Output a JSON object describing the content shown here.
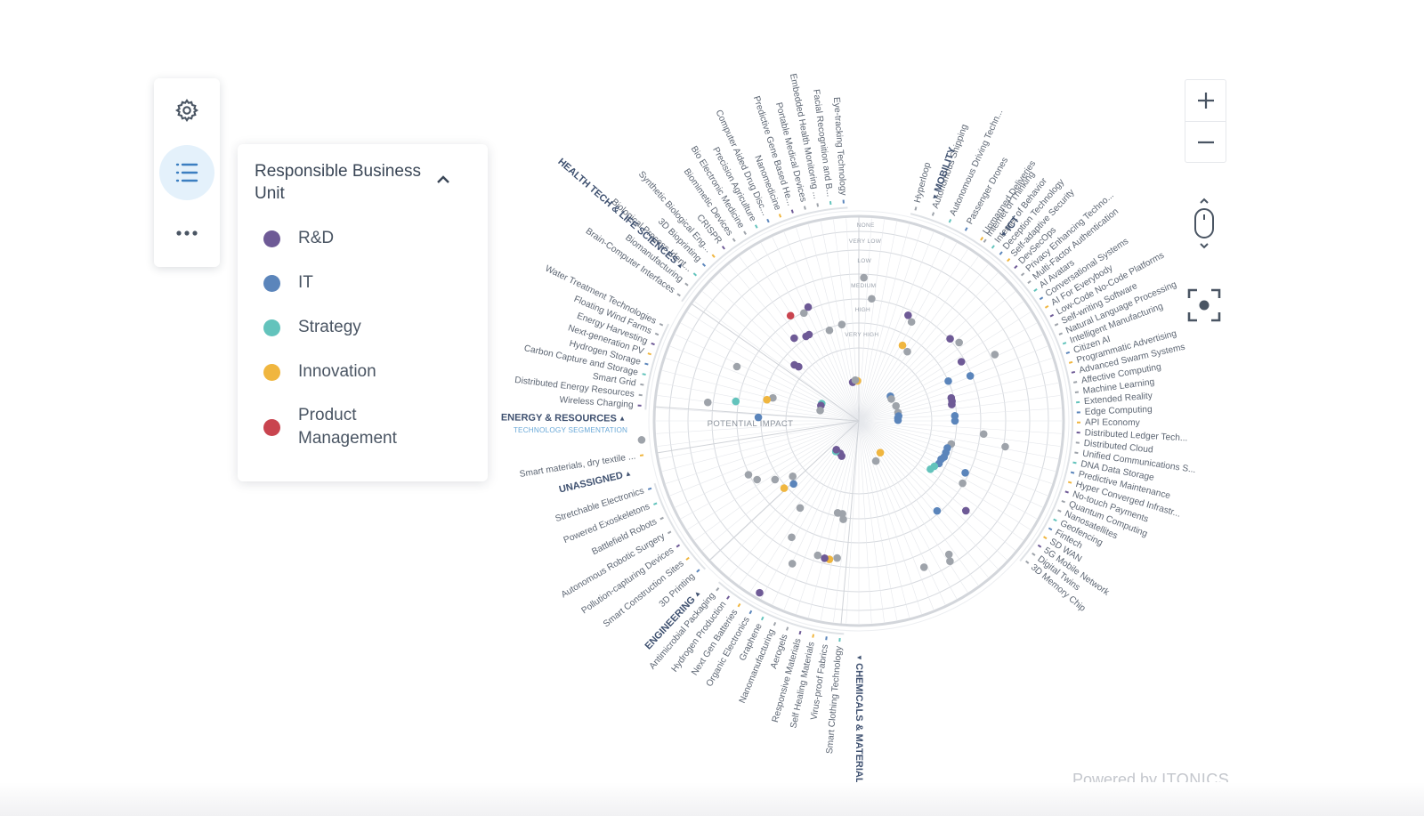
{
  "toolbar": {
    "settings_icon": "gear-icon",
    "list_icon": "list-icon",
    "more_icon": "more-icon"
  },
  "legend": {
    "title": "Responsible Business Unit",
    "collapse_icon": "chevron-up-icon",
    "items": [
      {
        "label": "R&D",
        "color": "#6e5a96"
      },
      {
        "label": "IT",
        "color": "#5b85bb"
      },
      {
        "label": "Strategy",
        "color": "#63c3bc"
      },
      {
        "label": "Innovation",
        "color": "#f0b63f"
      },
      {
        "label": "Product Management",
        "color": "#c9444f"
      }
    ]
  },
  "zoom": {
    "in_icon": "plus-icon",
    "out_icon": "minus-icon",
    "scroll_icon": "mouse-scroll-icon",
    "focus_icon": "focus-center-icon"
  },
  "footer": {
    "powered_prefix": "Powered by",
    "brand": "ITONICS"
  },
  "radar": {
    "center_label": "POTENTIAL IMPACT",
    "rings": [
      "NONE",
      "VERY LOW",
      "LOW",
      "MEDIUM",
      "HIGH",
      "VERY HIGH"
    ],
    "segment_subtitle": "TECHNOLOGY SEGMENTATION",
    "colors": {
      "grey": "#9ea3aa",
      "ring": "#d7dadf",
      "spoke": "#e6e8ec"
    },
    "segments": [
      {
        "name": "MOBILITY",
        "label_angle": -71,
        "arrow": "left",
        "start": -75,
        "end": -56,
        "items": [
          "Hyperloop",
          "Autonomous Shipping",
          "Autonomous Driving Techn...",
          "Passenger Drones",
          "Unmanned Deliveries"
        ]
      },
      {
        "name": "ICT",
        "label_angle": -52,
        "arrow": "left",
        "start": -55,
        "end": 40,
        "items": [
          "Internet of Thinking",
          "Internet of Behavior",
          "Deception Technology",
          "Self-adaptive Security",
          "DevSecOps",
          "Privacy Enhancing Techno...",
          "Multi-Factor Authentication",
          "AI Avatars",
          "Conversational Systems",
          "AI For Everybody",
          "Low-Code No-Code Platforms",
          "Self-writing Software",
          "Natural Language Processing",
          "Intelligent Manufacturing",
          "Citizen AI",
          "Programmatic Advertising",
          "Advanced Swarm Systems",
          "Affective Computing",
          "Machine Learning",
          "Extended Reality",
          "Edge Computing",
          "API Economy",
          "Distributed Ledger Tech...",
          "Distributed Cloud",
          "Unified Communications S...",
          "DNA Data Storage",
          "Predictive Maintenance",
          "Hyper Converged Infrastr...",
          "No-touch Payments",
          "Quantum Computing",
          "Nanosatellites",
          "Geofencing",
          "Fintech",
          "SD WAN",
          "5G Mobile Network",
          "Digital Twins",
          "3D Memory Chip"
        ]
      },
      {
        "name": "CHEMICALS & MATERIALS",
        "label_angle": 90,
        "arrow": "left",
        "start": 95,
        "end": 130,
        "items": [
          "Smart Clothing Technology",
          "Virus-proof Fabrics",
          "Self Healing Materials",
          "Responsive Materials",
          "Aerogels",
          "Nanomanufacturing",
          "Graphene",
          "Organic Electronics",
          "Next Gen Batteries",
          "Hydrogen Production",
          "Antimicrobial Packaging"
        ]
      },
      {
        "name": "ENGINEERING",
        "label_angle": 133,
        "arrow": "right",
        "start": 137,
        "end": 162,
        "items": [
          "3D Printing",
          "Smart Construction Sites",
          "Pollution-capturing Devices",
          "Autonomous Robotic Surgery",
          "Battlefield Robots",
          "Powered Exoskeletons",
          "Stretchable Electronics"
        ]
      },
      {
        "name": "UNASSIGNED",
        "label_angle": 167,
        "arrow": "right",
        "start": 171,
        "end": 171,
        "items": [
          "Smart materials, dry textile ..."
        ]
      },
      {
        "name": "ENERGY & RESOURCES",
        "label_angle": 180.5,
        "arrow": "right",
        "start": 184,
        "end": 206,
        "items": [
          "Wireless Charging",
          "Distributed Energy Resources",
          "Smart Grid",
          "Carbon Capture and Storage",
          "Hydrogen Storage",
          "Next-generation PV",
          "Energy Harvesting",
          "Floating Wind Farms",
          "Water Treatment Technologies"
        ]
      },
      {
        "name": "HEALTH TECH & LIFE SCIENCES",
        "label_angle": 221,
        "arrow": "right",
        "start": 215,
        "end": 266,
        "items": [
          "Brain-Computer Interfaces",
          "Biomanufacturing",
          "Biological Process Ident...",
          "3D Bioprinting",
          "Synthetic Biological Eng...",
          "CRISPR",
          "Biomimetic Devices",
          "Bio Electronic Medicine",
          "Precision Agriculture",
          "Computer Aided Drug Disc...",
          "Nanomedicine",
          "Predictive Gene Based He...",
          "Portable Medical Devices",
          "Embedded Health Monitoring ...",
          "Facial Recognition and B...",
          "Eye-tracking Technology"
        ]
      }
    ],
    "dots": [
      {
        "a": -88,
        "r": 161,
        "c": "grey"
      },
      {
        "a": -84,
        "r": 138,
        "c": "grey"
      },
      {
        "a": -65,
        "r": 131,
        "c": "R&D"
      },
      {
        "a": -62,
        "r": 126,
        "c": "grey"
      },
      {
        "a": -60,
        "r": 98,
        "c": "Innovation"
      },
      {
        "a": -55,
        "r": 95,
        "c": "grey"
      },
      {
        "a": -108,
        "r": 107,
        "c": "grey"
      },
      {
        "a": -100,
        "r": 110,
        "c": "grey"
      },
      {
        "a": -122,
        "r": 112,
        "c": "R&D"
      },
      {
        "a": -120,
        "r": 112,
        "c": "R&D"
      },
      {
        "a": -117,
        "r": 136,
        "c": "grey"
      },
      {
        "a": -114,
        "r": 140,
        "c": "R&D"
      },
      {
        "a": -123,
        "r": 141,
        "c": "Product Management"
      },
      {
        "a": -128,
        "r": 118,
        "c": "R&D"
      },
      {
        "a": -139,
        "r": 96,
        "c": "R&D"
      },
      {
        "a": -138,
        "r": 91,
        "c": "R&D"
      },
      {
        "a": -99,
        "r": 44,
        "c": "R&D"
      },
      {
        "a": -92,
        "r": 45,
        "c": "Innovation"
      },
      {
        "a": -95,
        "r": 46,
        "c": "grey"
      },
      {
        "a": -165,
        "r": 100,
        "c": "grey"
      },
      {
        "a": -156,
        "r": 150,
        "c": "grey"
      },
      {
        "a": -171,
        "r": 140,
        "c": "Strategy"
      },
      {
        "a": -173,
        "r": 171,
        "c": "grey"
      },
      {
        "a": -167,
        "r": 106,
        "c": "Innovation"
      },
      {
        "a": -178,
        "r": 113,
        "c": "IT"
      },
      {
        "a": -155,
        "r": 46,
        "c": "Strategy"
      },
      {
        "a": -158,
        "r": 46,
        "c": "R&D"
      },
      {
        "a": -165,
        "r": 45,
        "c": "grey"
      },
      {
        "a": -38,
        "r": 45,
        "c": "IT"
      },
      {
        "a": -34,
        "r": 44,
        "c": "grey"
      },
      {
        "a": -22,
        "r": 45,
        "c": "grey"
      },
      {
        "a": -12,
        "r": 45,
        "c": "grey"
      },
      {
        "a": -7,
        "r": 45,
        "c": "IT"
      },
      {
        "a": -4,
        "r": 44,
        "c": "IT"
      },
      {
        "a": -1,
        "r": 44,
        "c": "IT"
      },
      {
        "a": -38,
        "r": 143,
        "c": "grey"
      },
      {
        "a": -42,
        "r": 138,
        "c": "R&D"
      },
      {
        "a": -30,
        "r": 133,
        "c": "R&D"
      },
      {
        "a": -24,
        "r": 110,
        "c": "IT"
      },
      {
        "a": -22,
        "r": 135,
        "c": "IT"
      },
      {
        "a": -14,
        "r": 107,
        "c": "R&D"
      },
      {
        "a": -12,
        "r": 107,
        "c": "R&D"
      },
      {
        "a": -10,
        "r": 106,
        "c": "R&D"
      },
      {
        "a": 0,
        "r": 108,
        "c": "IT"
      },
      {
        "a": -3,
        "r": 108,
        "c": "IT"
      },
      {
        "a": -26,
        "r": 170,
        "c": "grey"
      },
      {
        "a": 6,
        "r": 141,
        "c": "grey"
      },
      {
        "a": 10,
        "r": 167,
        "c": "grey"
      },
      {
        "a": 14,
        "r": 107,
        "c": "grey"
      },
      {
        "a": 17,
        "r": 104,
        "c": "IT"
      },
      {
        "a": 20,
        "r": 104,
        "c": "IT"
      },
      {
        "a": 23,
        "r": 104,
        "c": "IT"
      },
      {
        "a": 25,
        "r": 102,
        "c": "IT"
      },
      {
        "a": 28,
        "r": 102,
        "c": "IT"
      },
      {
        "a": 31,
        "r": 99,
        "c": "Strategy"
      },
      {
        "a": 34,
        "r": 97,
        "c": "Strategy"
      },
      {
        "a": 26,
        "r": 133,
        "c": "IT"
      },
      {
        "a": 31,
        "r": 136,
        "c": "grey"
      },
      {
        "a": 40,
        "r": 157,
        "c": "R&D"
      },
      {
        "a": 49,
        "r": 134,
        "c": "IT"
      },
      {
        "a": 56,
        "r": 181,
        "c": "grey"
      },
      {
        "a": 57,
        "r": 188,
        "c": "grey"
      },
      {
        "a": 66,
        "r": 180,
        "c": "grey"
      },
      {
        "a": 67,
        "r": 49,
        "c": "grey"
      },
      {
        "a": 56,
        "r": 43,
        "c": "Innovation"
      },
      {
        "a": 99,
        "r": 112,
        "c": "grey"
      },
      {
        "a": 100,
        "r": 106,
        "c": "grey"
      },
      {
        "a": 103,
        "r": 106,
        "c": "grey"
      },
      {
        "a": 99,
        "r": 156,
        "c": "grey"
      },
      {
        "a": 102,
        "r": 159,
        "c": "Innovation"
      },
      {
        "a": 104,
        "r": 159,
        "c": "R&D"
      },
      {
        "a": 107,
        "r": 158,
        "c": "grey"
      },
      {
        "a": 115,
        "r": 177,
        "c": "grey"
      },
      {
        "a": 120,
        "r": 151,
        "c": "grey"
      },
      {
        "a": 120,
        "r": 223,
        "c": "R&D"
      },
      {
        "a": 124,
        "r": 118,
        "c": "grey"
      },
      {
        "a": 136,
        "r": 102,
        "c": "IT"
      },
      {
        "a": 138,
        "r": 113,
        "c": "Innovation"
      },
      {
        "a": 140,
        "r": 97,
        "c": "grey"
      },
      {
        "a": 145,
        "r": 115,
        "c": "grey"
      },
      {
        "a": 150,
        "r": 132,
        "c": "grey"
      },
      {
        "a": 154,
        "r": 138,
        "c": "grey"
      },
      {
        "a": 116,
        "r": 44,
        "c": "R&D"
      },
      {
        "a": 120,
        "r": 42,
        "c": "R&D"
      },
      {
        "a": 127,
        "r": 43,
        "c": "Strategy"
      },
      {
        "a": 128,
        "r": 41,
        "c": "R&D"
      },
      {
        "a": 175,
        "r": 245,
        "c": "grey"
      }
    ]
  }
}
